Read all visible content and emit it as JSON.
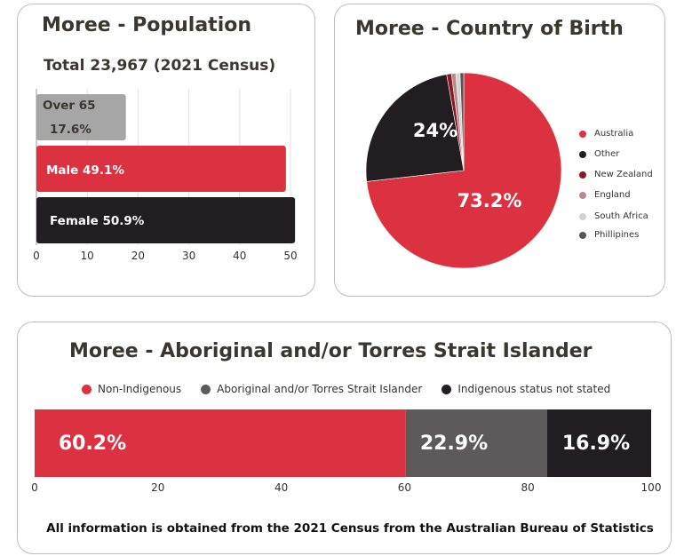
{
  "population": {
    "title": "Moree - Population",
    "subtitle": "Total 23,967 (2021 Census)",
    "chart_data": {
      "type": "bar",
      "orientation": "horizontal",
      "categories": [
        "Over 65",
        "Male",
        "Female"
      ],
      "values": [
        17.6,
        49.1,
        50.9
      ],
      "labels": [
        "Over 65",
        "17.6%",
        "Male 49.1%",
        "Female 50.9%"
      ],
      "xlim": [
        0,
        50
      ],
      "xticks": [
        "0",
        "10",
        "20",
        "30",
        "40",
        "50"
      ],
      "colors": [
        "#a6a6a6",
        "#dc3140",
        "#221d20"
      ]
    }
  },
  "birth": {
    "title": "Moree - Country of Birth",
    "chart_data": {
      "type": "pie",
      "slices": [
        {
          "name": "Australia",
          "value": 73.2,
          "color": "#dc3140"
        },
        {
          "name": "Other",
          "value": 24,
          "color": "#221d20"
        },
        {
          "name": "New Zealand",
          "value": 0.8,
          "color": "#8a1a26"
        },
        {
          "name": "England",
          "value": 0.7,
          "color": "#b98a8d"
        },
        {
          "name": "South Africa",
          "value": 0.7,
          "color": "#d3d3d3"
        },
        {
          "name": "Phillipines",
          "value": 0.6,
          "color": "#555555"
        }
      ],
      "labels": [
        "73.2%",
        "24%"
      ],
      "legend": "right"
    }
  },
  "indigenous": {
    "title": "Moree - Aboriginal and/or Torres Strait Islander",
    "chart_data": {
      "type": "bar",
      "stacked": true,
      "orientation": "horizontal",
      "series": [
        {
          "name": "Non-Indigenous",
          "value": 60.2,
          "label": "60.2%",
          "color": "#dc3140"
        },
        {
          "name": "Aboriginal and/or Torres Strait Islander",
          "value": 22.9,
          "label": "22.9%",
          "color": "#5e5a5c"
        },
        {
          "name": "Indigenous status not stated",
          "value": 16.9,
          "label": "16.9%",
          "color": "#221d20"
        }
      ],
      "xlim": [
        0,
        100
      ],
      "xticks": [
        "0",
        "20",
        "40",
        "60",
        "80",
        "100"
      ],
      "legend": "top"
    }
  },
  "footer": "All information is obtained from the 2021 Census from the Australian Bureau of Statistics"
}
